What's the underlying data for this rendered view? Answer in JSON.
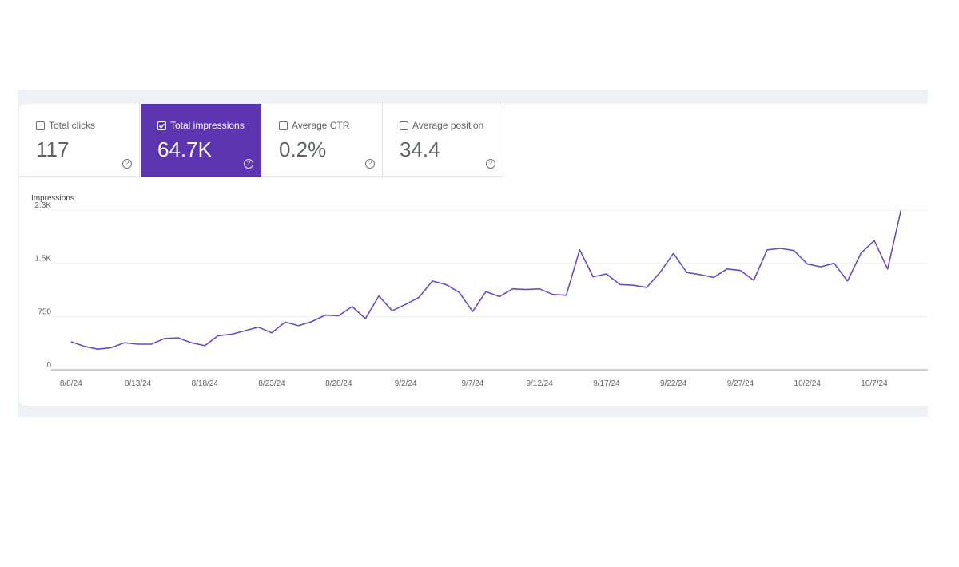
{
  "metrics": [
    {
      "label": "Total clicks",
      "value": "117",
      "checked": false
    },
    {
      "label": "Total impressions",
      "value": "64.7K",
      "checked": true
    },
    {
      "label": "Average CTR",
      "value": "0.2%",
      "checked": false
    },
    {
      "label": "Average position",
      "value": "34.4",
      "checked": false
    }
  ],
  "help_glyph": "?",
  "colors": {
    "accent": "#5e35b1",
    "line": "#6a4bc4",
    "grid": "#eceff1"
  },
  "chart_data": {
    "type": "line",
    "ylabel": "Impressions",
    "yticks": [
      {
        "value": 0,
        "label": "0"
      },
      {
        "value": 750,
        "label": "750"
      },
      {
        "value": 1500,
        "label": "1.5K"
      },
      {
        "value": 2250,
        "label": "2.3K"
      }
    ],
    "ylim": [
      0,
      2250
    ],
    "xlim": [
      "2024-08-07",
      "2024-10-11"
    ],
    "xticks": [
      {
        "date": "2024-08-08",
        "label": "8/8/24"
      },
      {
        "date": "2024-08-13",
        "label": "8/13/24"
      },
      {
        "date": "2024-08-18",
        "label": "8/18/24"
      },
      {
        "date": "2024-08-23",
        "label": "8/23/24"
      },
      {
        "date": "2024-08-28",
        "label": "8/28/24"
      },
      {
        "date": "2024-09-02",
        "label": "9/2/24"
      },
      {
        "date": "2024-09-07",
        "label": "9/7/24"
      },
      {
        "date": "2024-09-12",
        "label": "9/12/24"
      },
      {
        "date": "2024-09-17",
        "label": "9/17/24"
      },
      {
        "date": "2024-09-22",
        "label": "9/22/24"
      },
      {
        "date": "2024-09-27",
        "label": "9/27/24"
      },
      {
        "date": "2024-10-02",
        "label": "10/2/24"
      },
      {
        "date": "2024-10-07",
        "label": "10/7/24"
      }
    ],
    "x": [
      "2024-08-08",
      "2024-08-09",
      "2024-08-10",
      "2024-08-11",
      "2024-08-12",
      "2024-08-13",
      "2024-08-14",
      "2024-08-15",
      "2024-08-16",
      "2024-08-17",
      "2024-08-18",
      "2024-08-19",
      "2024-08-20",
      "2024-08-21",
      "2024-08-22",
      "2024-08-23",
      "2024-08-24",
      "2024-08-25",
      "2024-08-26",
      "2024-08-27",
      "2024-08-28",
      "2024-08-29",
      "2024-08-30",
      "2024-08-31",
      "2024-09-01",
      "2024-09-02",
      "2024-09-03",
      "2024-09-04",
      "2024-09-05",
      "2024-09-06",
      "2024-09-07",
      "2024-09-08",
      "2024-09-09",
      "2024-09-10",
      "2024-09-11",
      "2024-09-12",
      "2024-09-13",
      "2024-09-14",
      "2024-09-15",
      "2024-09-16",
      "2024-09-17",
      "2024-09-18",
      "2024-09-19",
      "2024-09-20",
      "2024-09-21",
      "2024-09-22",
      "2024-09-23",
      "2024-09-24",
      "2024-09-25",
      "2024-09-26",
      "2024-09-27",
      "2024-09-28",
      "2024-09-29",
      "2024-09-30",
      "2024-10-01",
      "2024-10-02",
      "2024-10-03",
      "2024-10-04",
      "2024-10-05",
      "2024-10-06",
      "2024-10-07",
      "2024-10-08",
      "2024-10-09"
    ],
    "series": [
      {
        "values": [
          395,
          330,
          290,
          310,
          380,
          360,
          360,
          440,
          450,
          380,
          340,
          480,
          500,
          550,
          600,
          520,
          670,
          620,
          680,
          770,
          760,
          890,
          720,
          1040,
          830,
          920,
          1020,
          1250,
          1200,
          1090,
          820,
          1100,
          1030,
          1140,
          1130,
          1140,
          1060,
          1050,
          1690,
          1310,
          1350,
          1200,
          1190,
          1160,
          1370,
          1640,
          1370,
          1340,
          1300,
          1420,
          1400,
          1260,
          1690,
          1710,
          1680,
          1490,
          1450,
          1500,
          1250,
          1640,
          1820,
          1420,
          2250
        ]
      }
    ]
  }
}
